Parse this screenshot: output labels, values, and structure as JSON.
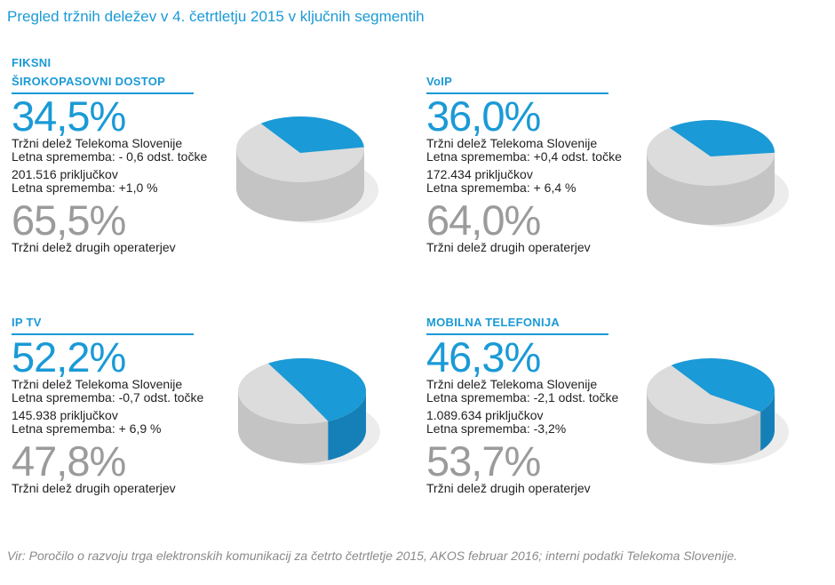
{
  "title": "Pregled tržnih deležev v 4. četrtletju 2015 v ključnih segmentih",
  "segments": [
    {
      "title1": "FIKSNI",
      "title2": "ŠIROKOPASOVNI DOSTOP",
      "share": "34,5%",
      "share_label": "Tržni delež Telekoma Slovenije",
      "share_change": "Letna sprememba: - 0,6 odst. točke",
      "connections": "201.516 priključkov",
      "conn_change": "Letna sprememba: +1,0 %",
      "other": "65,5%",
      "other_label": "Tržni delež drugih operaterjev"
    },
    {
      "title1": "",
      "title2": "VoIP",
      "share": "36,0%",
      "share_label": "Tržni delež Telekoma Slovenije",
      "share_change": "Letna sprememba: +0,4 odst. točke",
      "connections": "172.434 priključkov",
      "conn_change": "Letna sprememba: + 6,4 %",
      "other": "64,0%",
      "other_label": "Tržni delež drugih operaterjev"
    },
    {
      "title1": "",
      "title2": "IP TV",
      "share": "52,2%",
      "share_label": "Tržni delež Telekoma Slovenije",
      "share_change": "Letna sprememba: -0,7 odst. točke",
      "connections": "145.938 priključkov",
      "conn_change": "Letna sprememba: + 6,9 %",
      "other": "47,8%",
      "other_label": "Tržni delež drugih operaterjev"
    },
    {
      "title1": "",
      "title2": "MOBILNA TELEFONIJA",
      "share": "46,3%",
      "share_label": "Tržni delež Telekoma Slovenije",
      "share_change": "Letna sprememba: -2,1 odst. točke",
      "connections": "1.089.634 priključkov",
      "conn_change": "Letna sprememba: -3,2%",
      "other": "53,7%",
      "other_label": "Tržni delež drugih operaterjev"
    }
  ],
  "source": "Vir: Poročilo o razvoju trga elektronskih komunikacij za četrto četrtletje 2015, AKOS februar 2016; interni podatki Telekoma Slovenije.",
  "colors": {
    "accent": "#1a9ad6",
    "other": "#dcdcdc",
    "side": "#c4c4c4"
  },
  "chart_data": [
    {
      "type": "pie",
      "title": "FIKSNI ŠIROKOPASOVNI DOSTOP",
      "categories": [
        "Telekom Slovenije",
        "Drugi operaterji"
      ],
      "values": [
        34.5,
        65.5
      ]
    },
    {
      "type": "pie",
      "title": "VoIP",
      "categories": [
        "Telekom Slovenije",
        "Drugi operaterji"
      ],
      "values": [
        36.0,
        64.0
      ]
    },
    {
      "type": "pie",
      "title": "IP TV",
      "categories": [
        "Telekom Slovenije",
        "Drugi operaterji"
      ],
      "values": [
        52.2,
        47.8
      ]
    },
    {
      "type": "pie",
      "title": "MOBILNA TELEFONIJA",
      "categories": [
        "Telekom Slovenije",
        "Drugi operaterji"
      ],
      "values": [
        46.3,
        53.7
      ]
    }
  ]
}
